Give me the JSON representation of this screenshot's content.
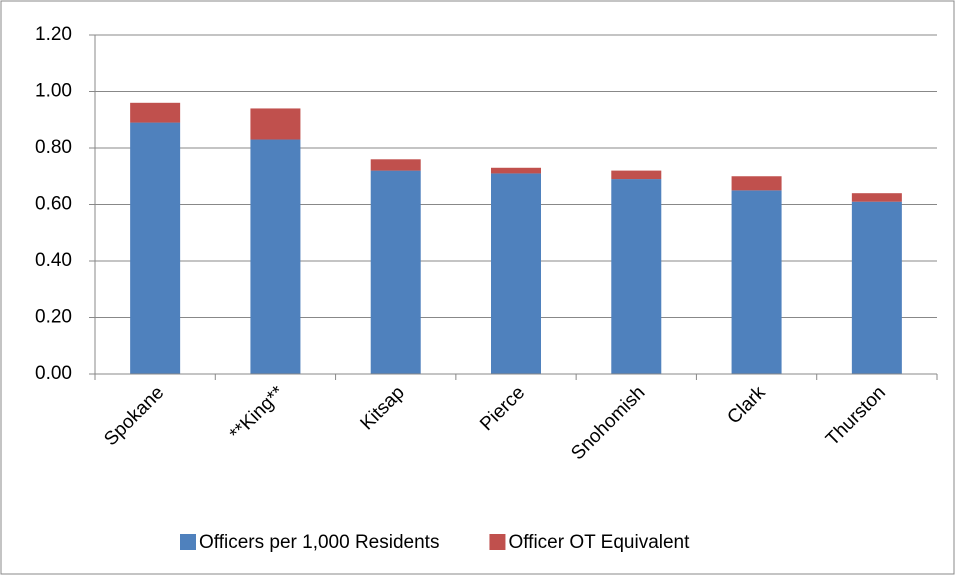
{
  "chart_data": {
    "type": "stacked_bar",
    "categories": [
      "Spokane",
      "**King**",
      "Kitsap",
      "Pierce",
      "Snohomish",
      "Clark",
      "Thurston"
    ],
    "series": [
      {
        "name": "Officers per 1,000 Residents",
        "color": "#4f81bd",
        "values": [
          0.89,
          0.83,
          0.72,
          0.71,
          0.69,
          0.65,
          0.61
        ]
      },
      {
        "name": "Officer OT Equivalent",
        "color": "#c0504d",
        "values": [
          0.07,
          0.11,
          0.04,
          0.02,
          0.03,
          0.05,
          0.03
        ]
      }
    ],
    "ylim": [
      0,
      1.2
    ],
    "yticks": [
      {
        "value": 0,
        "label": "0.00"
      },
      {
        "value": 0.2,
        "label": "0.20"
      },
      {
        "value": 0.4,
        "label": "0.40"
      },
      {
        "value": 0.6,
        "label": "0.60"
      },
      {
        "value": 0.8,
        "label": "0.80"
      },
      {
        "value": 1.0,
        "label": "1.00"
      },
      {
        "value": 1.2,
        "label": "1.20"
      }
    ],
    "grid": true,
    "legend": "bottom"
  }
}
